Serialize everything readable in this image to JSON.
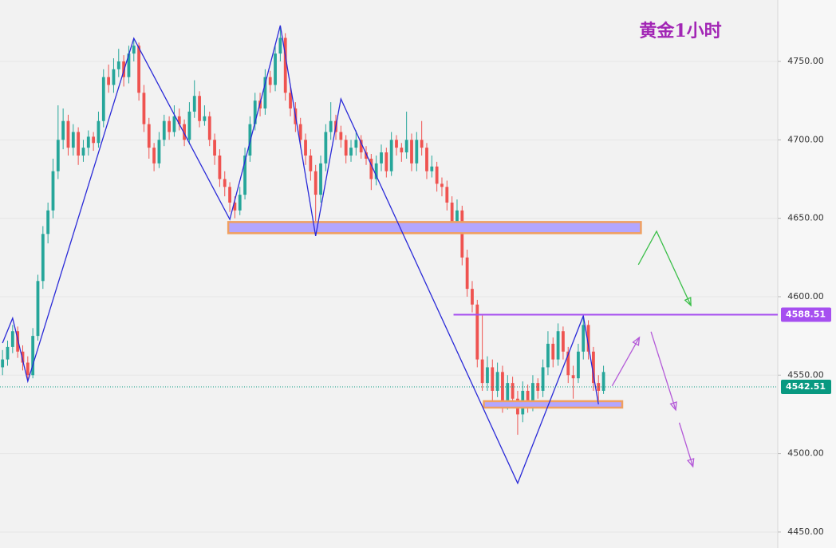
{
  "chart_data": {
    "type": "candlestick",
    "title": "黄金1小时",
    "xlim": [
      -0.5,
      153.5
    ],
    "ylim": [
      4439.8,
      4789.15
    ],
    "yticks": [
      {
        "value": 4450,
        "label": "4450.00"
      },
      {
        "value": 4500,
        "label": "4500.00"
      },
      {
        "value": 4550,
        "label": "4550.00"
      },
      {
        "value": 4600,
        "label": "4600.00"
      },
      {
        "value": 4650,
        "label": "4650.00"
      },
      {
        "value": 4700,
        "label": "4700.00"
      },
      {
        "value": 4750,
        "label": "4750.00"
      }
    ],
    "grid": true,
    "up_color": "#26a69a",
    "down_color": "#ef5350",
    "ohlc": [
      [
        4555,
        4566,
        4550,
        4560
      ],
      [
        4560,
        4572,
        4556,
        4568
      ],
      [
        4568,
        4582,
        4564,
        4578
      ],
      [
        4578,
        4581,
        4561,
        4565
      ],
      [
        4565,
        4569,
        4553,
        4558
      ],
      [
        4558,
        4562,
        4547,
        4550
      ],
      [
        4550,
        4580,
        4548,
        4575
      ],
      [
        4575,
        4614,
        4572,
        4610
      ],
      [
        4610,
        4645,
        4605,
        4640
      ],
      [
        4640,
        4660,
        4634,
        4655
      ],
      [
        4655,
        4688,
        4650,
        4680
      ],
      [
        4680,
        4722,
        4675,
        4700
      ],
      [
        4700,
        4720,
        4694,
        4712
      ],
      [
        4712,
        4716,
        4690,
        4695
      ],
      [
        4695,
        4710,
        4690,
        4705
      ],
      [
        4705,
        4708,
        4684,
        4690
      ],
      [
        4690,
        4700,
        4686,
        4695
      ],
      [
        4695,
        4706,
        4690,
        4702
      ],
      [
        4702,
        4705,
        4693,
        4698
      ],
      [
        4698,
        4718,
        4695,
        4712
      ],
      [
        4712,
        4745,
        4708,
        4740
      ],
      [
        4740,
        4748,
        4730,
        4735
      ],
      [
        4735,
        4752,
        4730,
        4745
      ],
      [
        4745,
        4758,
        4740,
        4750
      ],
      [
        4750,
        4754,
        4734,
        4740
      ],
      [
        4740,
        4760,
        4736,
        4755
      ],
      [
        4755,
        4765,
        4750,
        4760
      ],
      [
        4760,
        4762,
        4725,
        4730
      ],
      [
        4730,
        4735,
        4705,
        4710
      ],
      [
        4710,
        4714,
        4688,
        4695
      ],
      [
        4695,
        4698,
        4680,
        4685
      ],
      [
        4685,
        4705,
        4682,
        4700
      ],
      [
        4700,
        4716,
        4696,
        4712
      ],
      [
        4712,
        4715,
        4700,
        4705
      ],
      [
        4705,
        4722,
        4702,
        4715
      ],
      [
        4715,
        4720,
        4706,
        4710
      ],
      [
        4710,
        4713,
        4696,
        4700
      ],
      [
        4700,
        4724,
        4697,
        4718
      ],
      [
        4718,
        4738,
        4714,
        4728
      ],
      [
        4728,
        4731,
        4708,
        4712
      ],
      [
        4712,
        4722,
        4709,
        4715
      ],
      [
        4715,
        4718,
        4696,
        4700
      ],
      [
        4700,
        4704,
        4684,
        4690
      ],
      [
        4690,
        4694,
        4670,
        4675
      ],
      [
        4675,
        4680,
        4664,
        4670
      ],
      [
        4670,
        4673,
        4654,
        4660
      ],
      [
        4660,
        4664,
        4650,
        4655
      ],
      [
        4655,
        4670,
        4652,
        4665
      ],
      [
        4665,
        4695,
        4662,
        4690
      ],
      [
        4690,
        4715,
        4686,
        4710
      ],
      [
        4710,
        4730,
        4706,
        4725
      ],
      [
        4725,
        4730,
        4715,
        4720
      ],
      [
        4720,
        4745,
        4716,
        4740
      ],
      [
        4740,
        4744,
        4730,
        4735
      ],
      [
        4735,
        4760,
        4731,
        4755
      ],
      [
        4755,
        4772,
        4750,
        4765
      ],
      [
        4765,
        4768,
        4725,
        4730
      ],
      [
        4730,
        4735,
        4715,
        4720
      ],
      [
        4720,
        4724,
        4705,
        4710
      ],
      [
        4710,
        4714,
        4695,
        4700
      ],
      [
        4700,
        4704,
        4684,
        4690
      ],
      [
        4690,
        4694,
        4674,
        4680
      ],
      [
        4680,
        4684,
        4648,
        4665
      ],
      [
        4665,
        4690,
        4660,
        4685
      ],
      [
        4685,
        4710,
        4680,
        4705
      ],
      [
        4705,
        4724,
        4700,
        4712
      ],
      [
        4712,
        4716,
        4700,
        4705
      ],
      [
        4705,
        4709,
        4695,
        4700
      ],
      [
        4700,
        4703,
        4685,
        4690
      ],
      [
        4690,
        4700,
        4686,
        4695
      ],
      [
        4695,
        4706,
        4690,
        4700
      ],
      [
        4700,
        4703,
        4688,
        4692
      ],
      [
        4692,
        4696,
        4684,
        4688
      ],
      [
        4688,
        4691,
        4668,
        4675
      ],
      [
        4675,
        4690,
        4671,
        4685
      ],
      [
        4685,
        4697,
        4680,
        4692
      ],
      [
        4692,
        4695,
        4676,
        4680
      ],
      [
        4680,
        4705,
        4677,
        4700
      ],
      [
        4700,
        4703,
        4690,
        4695
      ],
      [
        4695,
        4698,
        4686,
        4692
      ],
      [
        4692,
        4718,
        4688,
        4700
      ],
      [
        4700,
        4704,
        4680,
        4685
      ],
      [
        4685,
        4705,
        4680,
        4700
      ],
      [
        4700,
        4712,
        4690,
        4695
      ],
      [
        4695,
        4698,
        4675,
        4680
      ],
      [
        4680,
        4690,
        4676,
        4683
      ],
      [
        4683,
        4686,
        4667,
        4672
      ],
      [
        4672,
        4676,
        4664,
        4670
      ],
      [
        4670,
        4674,
        4655,
        4660
      ],
      [
        4660,
        4664,
        4643,
        4648
      ],
      [
        4648,
        4662,
        4644,
        4655
      ],
      [
        4655,
        4658,
        4620,
        4625
      ],
      [
        4625,
        4630,
        4600,
        4605
      ],
      [
        4605,
        4610,
        4590,
        4595
      ],
      [
        4595,
        4598,
        4555,
        4560
      ],
      [
        4560,
        4588,
        4540,
        4545
      ],
      [
        4545,
        4562,
        4540,
        4555
      ],
      [
        4555,
        4560,
        4532,
        4540
      ],
      [
        4540,
        4558,
        4536,
        4552
      ],
      [
        4552,
        4556,
        4526,
        4532
      ],
      [
        4532,
        4550,
        4528,
        4545
      ],
      [
        4545,
        4549,
        4530,
        4535
      ],
      [
        4535,
        4540,
        4512,
        4525
      ],
      [
        4525,
        4546,
        4520,
        4540
      ],
      [
        4540,
        4544,
        4526,
        4530
      ],
      [
        4530,
        4550,
        4527,
        4545
      ],
      [
        4545,
        4548,
        4535,
        4540
      ],
      [
        4540,
        4560,
        4536,
        4555
      ],
      [
        4555,
        4578,
        4550,
        4570
      ],
      [
        4570,
        4574,
        4555,
        4560
      ],
      [
        4560,
        4583,
        4556,
        4578
      ],
      [
        4578,
        4581,
        4560,
        4565
      ],
      [
        4565,
        4568,
        4545,
        4550
      ],
      [
        4550,
        4556,
        4535,
        4548
      ],
      [
        4548,
        4570,
        4545,
        4565
      ],
      [
        4565,
        4589,
        4560,
        4582
      ],
      [
        4582,
        4585,
        4560,
        4565
      ],
      [
        4565,
        4568,
        4540,
        4545
      ],
      [
        4545,
        4550,
        4533,
        4540
      ],
      [
        4540,
        4556,
        4538,
        4552
      ]
    ],
    "zigzag": {
      "color": "#2a2ad8",
      "x": [
        0,
        2,
        5,
        26,
        45,
        55,
        62,
        67,
        102,
        115,
        118
      ],
      "y": [
        4570.5,
        4586.3,
        4546.1,
        4764.7,
        4649.3,
        4772.9,
        4638.7,
        4726.1,
        4481.1,
        4587.8,
        4531.4
      ]
    },
    "zones": [
      {
        "x": [
          44.7,
          126.4
        ],
        "y": [
          4640.5,
          4647.6
        ]
      },
      {
        "x": [
          95.3,
          122.7
        ],
        "y": [
          4529.3,
          4533.4
        ]
      }
    ],
    "level": {
      "value": 4588.51,
      "x": 89.3,
      "color": "#a64ff0"
    },
    "last_price": {
      "value": 4542.51,
      "color": "#089981"
    },
    "arrows": [
      {
        "color": "#3cbf4a",
        "x": [
          125.9,
          129.5,
          136.3
        ],
        "y": [
          4620.4,
          4641.7,
          4594.4
        ]
      },
      {
        "color": "#b45ad8",
        "x": [
          120.7,
          126.1
        ],
        "y": [
          4543.1,
          4574.1
        ]
      },
      {
        "color": "#b45ad8",
        "x": [
          128.4,
          133.3
        ],
        "y": [
          4577.7,
          4527.8
        ]
      },
      {
        "color": "#b45ad8",
        "x": [
          134,
          136.7
        ],
        "y": [
          4519.7,
          4491.7
        ]
      }
    ]
  }
}
